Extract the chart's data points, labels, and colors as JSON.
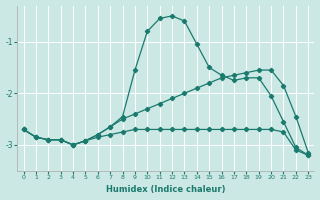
{
  "xlabel": "Humidex (Indice chaleur)",
  "ylabel": "",
  "xlim": [
    -0.5,
    23.5
  ],
  "ylim": [
    -3.5,
    -0.3
  ],
  "yticks": [
    -3,
    -2,
    -1
  ],
  "xticks": [
    0,
    1,
    2,
    3,
    4,
    5,
    6,
    7,
    8,
    9,
    10,
    11,
    12,
    13,
    14,
    15,
    16,
    17,
    18,
    19,
    20,
    21,
    22,
    23
  ],
  "background_color": "#cce8e4",
  "grid_color": "#ffffff",
  "line_color": "#1a7a6e",
  "curves": [
    {
      "x": [
        0,
        1,
        2,
        3,
        4,
        5,
        6,
        7,
        8,
        9,
        10,
        11,
        12,
        13,
        14,
        15,
        16,
        17,
        18,
        19,
        20,
        21,
        22,
        23
      ],
      "y": [
        -2.7,
        -2.85,
        -2.9,
        -2.9,
        -3.0,
        -2.92,
        -2.8,
        -2.65,
        -2.45,
        -1.55,
        -0.8,
        -0.55,
        -0.5,
        -0.6,
        -1.05,
        -1.5,
        -1.65,
        -1.75,
        -1.7,
        -1.7,
        -2.05,
        -2.55,
        -3.05,
        -3.2
      ]
    },
    {
      "x": [
        0,
        1,
        2,
        3,
        4,
        5,
        6,
        7,
        8,
        9,
        10,
        11,
        12,
        13,
        14,
        15,
        16,
        17,
        18,
        19,
        20,
        21,
        22,
        23
      ],
      "y": [
        -2.7,
        -2.85,
        -2.9,
        -2.9,
        -3.0,
        -2.92,
        -2.8,
        -2.65,
        -2.5,
        -2.4,
        -2.3,
        -2.2,
        -2.1,
        -2.0,
        -1.9,
        -1.8,
        -1.7,
        -1.65,
        -1.6,
        -1.55,
        -1.55,
        -1.85,
        -2.45,
        -3.15
      ]
    },
    {
      "x": [
        0,
        1,
        2,
        3,
        4,
        5,
        6,
        7,
        8,
        9,
        10,
        11,
        12,
        13,
        14,
        15,
        16,
        17,
        18,
        19,
        20,
        21,
        22,
        23
      ],
      "y": [
        -2.7,
        -2.85,
        -2.9,
        -2.9,
        -3.0,
        -2.92,
        -2.85,
        -2.8,
        -2.75,
        -2.7,
        -2.7,
        -2.7,
        -2.7,
        -2.7,
        -2.7,
        -2.7,
        -2.7,
        -2.7,
        -2.7,
        -2.7,
        -2.7,
        -2.75,
        -3.1,
        -3.2
      ]
    }
  ]
}
